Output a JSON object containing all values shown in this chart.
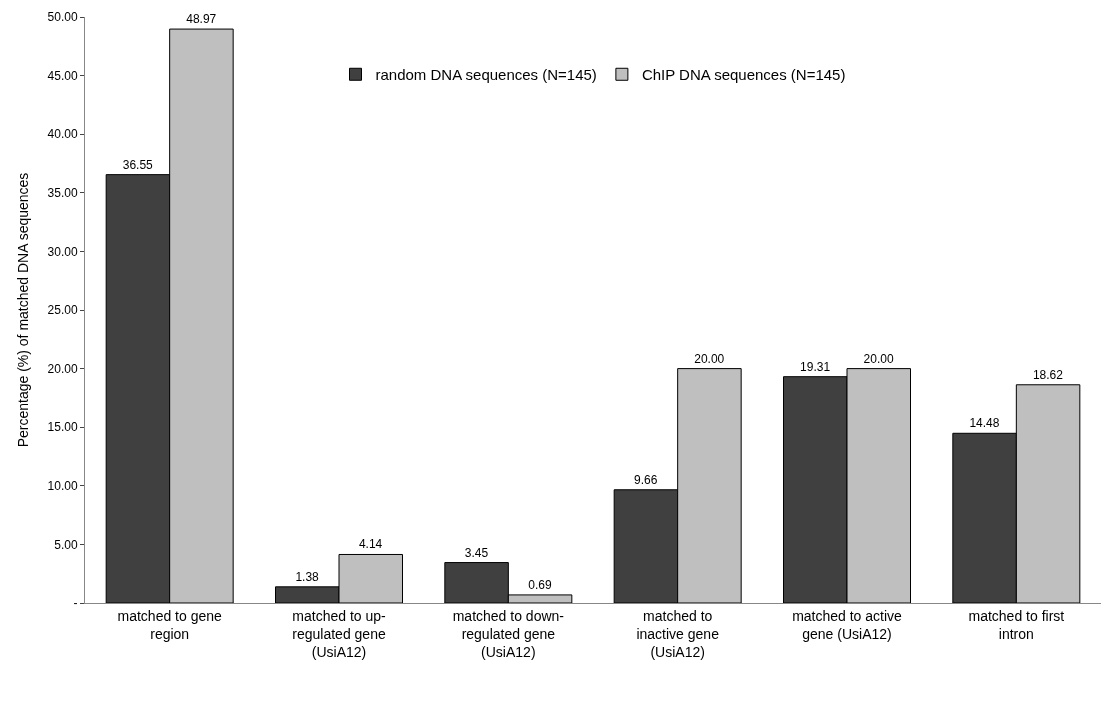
{
  "chart_data": {
    "type": "bar",
    "ylabel": "Percentage (%) of matched DNA sequences",
    "categories": [
      "matched to gene\nregion",
      "matched to up-\nregulated gene\n(UsiA12)",
      "matched to down-\nregulated gene\n(UsiA12)",
      "matched to\ninactive gene\n(UsiA12)",
      "matched to active\ngene (UsiA12)",
      "matched to first\nintron"
    ],
    "series": [
      {
        "name": "random DNA sequences (N=145)",
        "color": "#404040",
        "values": [
          36.55,
          1.38,
          3.45,
          9.66,
          19.31,
          14.48
        ],
        "value_labels": [
          "36.55",
          "1.38",
          "3.45",
          "9.66",
          "19.31",
          "14.48"
        ]
      },
      {
        "name": "ChIP DNA sequences (N=145)",
        "color": "#bfbfbf",
        "values": [
          48.97,
          4.14,
          0.69,
          20.0,
          20.0,
          18.62
        ],
        "value_labels": [
          "48.97",
          "4.14",
          "0.69",
          "20.00",
          "20.00",
          "18.62"
        ]
      }
    ],
    "ylim": [
      0,
      50
    ],
    "yticks": [
      {
        "value": 0,
        "label": "-"
      },
      {
        "value": 5,
        "label": "5.00"
      },
      {
        "value": 10,
        "label": "10.00"
      },
      {
        "value": 15,
        "label": "15.00"
      },
      {
        "value": 20,
        "label": "20.00"
      },
      {
        "value": 25,
        "label": "25.00"
      },
      {
        "value": 30,
        "label": "30.00"
      },
      {
        "value": 35,
        "label": "35.00"
      },
      {
        "value": 40,
        "label": "40.00"
      },
      {
        "value": 45,
        "label": "45.00"
      },
      {
        "value": 50,
        "label": "50.00"
      }
    ],
    "legend": "top"
  }
}
